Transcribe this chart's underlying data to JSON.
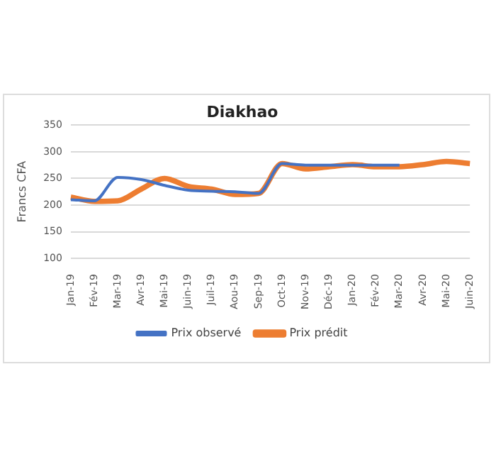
{
  "chart_data": {
    "type": "line",
    "title": "Diakhao",
    "ylabel": "Francs CFA",
    "categories": [
      "Jan-19",
      "Fév-19",
      "Mar-19",
      "Avr-19",
      "Mai-19",
      "Juin-19",
      "Juil-19",
      "Aou-19",
      "Sep-19",
      "Oct-19",
      "Nov-19",
      "Déc-19",
      "Jan-20",
      "Fév-20",
      "Mar-20",
      "Avr-20",
      "Mai-20",
      "Juin-20"
    ],
    "series": [
      {
        "name": "Prix observé",
        "color": "#4472c4",
        "values": [
          210,
          208,
          252,
          248,
          237,
          228,
          226,
          225,
          222,
          278,
          275,
          275,
          275,
          275,
          275,
          null,
          null,
          null
        ]
      },
      {
        "name": "Prix prédit",
        "color": "#ed7d31",
        "values": [
          215,
          207,
          208,
          230,
          250,
          235,
          230,
          220,
          222,
          278,
          268,
          272,
          276,
          272,
          272,
          276,
          282,
          278
        ]
      }
    ],
    "ylim": [
      100,
      350
    ],
    "yticks": [
      100,
      150,
      200,
      250,
      300,
      350
    ],
    "grid": "y",
    "legend": "bottom",
    "marker": "none"
  }
}
